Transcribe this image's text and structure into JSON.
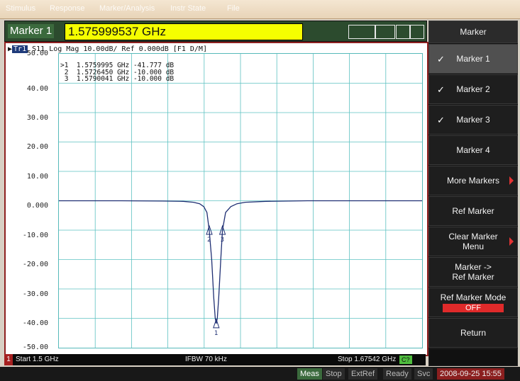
{
  "menubar": {
    "items": [
      "Stimulus",
      "Response",
      "Marker/Analysis",
      "Instr State",
      "File"
    ]
  },
  "marker_bar": {
    "label": "Marker 1",
    "value": "1.575999537 GHz"
  },
  "trace": {
    "tag": "Tr1",
    "header": "S11 Log Mag 10.00dB/ Ref 0.000dB [F1 D/M]"
  },
  "marker_table": [
    ">1  1.5759995 GHz -41.777 dB",
    " 2  1.5726450 GHz -10.000 dB",
    " 3  1.5790041 GHz -10.000 dB"
  ],
  "chart_data": {
    "type": "line",
    "ylim": [
      -50,
      50
    ],
    "xlim_ghz": [
      1.5,
      1.67542
    ],
    "grid": true,
    "y_ticks": [
      "50.00",
      "40.00",
      "30.00",
      "20.00",
      "10.00",
      "0.000",
      "-10.00",
      "-20.00",
      "-30.00",
      "-40.00",
      "-50.00"
    ],
    "series": [
      {
        "x": [
          1.5,
          1.53,
          1.55,
          1.56,
          1.565,
          1.568,
          1.57,
          1.5715,
          1.5726,
          1.5738,
          1.5748,
          1.5755,
          1.576,
          1.5765,
          1.5772,
          1.5782,
          1.579,
          1.5805,
          1.583,
          1.586,
          1.59,
          1.6,
          1.62,
          1.67542
        ],
        "y": [
          0,
          0,
          -0.1,
          -0.2,
          -0.5,
          -1.0,
          -2.0,
          -4.0,
          -10.0,
          -20.0,
          -33.0,
          -40.0,
          -41.777,
          -40.0,
          -33.0,
          -20.0,
          -10.0,
          -4.0,
          -2.0,
          -1.0,
          -0.5,
          -0.2,
          0,
          0
        ]
      }
    ],
    "markers": [
      {
        "id": "1",
        "x": 1.5759995,
        "y": -41.777
      },
      {
        "id": "2",
        "x": 1.572645,
        "y": -10.0
      },
      {
        "id": "3",
        "x": 1.5790041,
        "y": -10.0
      }
    ]
  },
  "status": {
    "channel": "1",
    "start": "Start 1.5 GHz",
    "ifbw": "IFBW 70 kHz",
    "stop": "Stop 1.67542 GHz",
    "cal": "C?"
  },
  "bottom_bar": {
    "meas": "Meas",
    "stop": "Stop",
    "extref": "ExtRef",
    "ready": "Ready",
    "svc": "Svc",
    "datetime": "2008-09-25 15:55"
  },
  "softkeys": {
    "title": "Marker",
    "marker1": "Marker 1",
    "marker2": "Marker 2",
    "marker3": "Marker 3",
    "marker4": "Marker 4",
    "more_markers": "More Markers",
    "ref_marker": "Ref Marker",
    "clear_marker_menu_1": "Clear Marker",
    "clear_marker_menu_2": "Menu",
    "marker_to_ref_1": "Marker ->",
    "marker_to_ref_2": "Ref Marker",
    "ref_marker_mode": "Ref Marker Mode",
    "ref_marker_mode_value": "OFF",
    "return": "Return"
  }
}
